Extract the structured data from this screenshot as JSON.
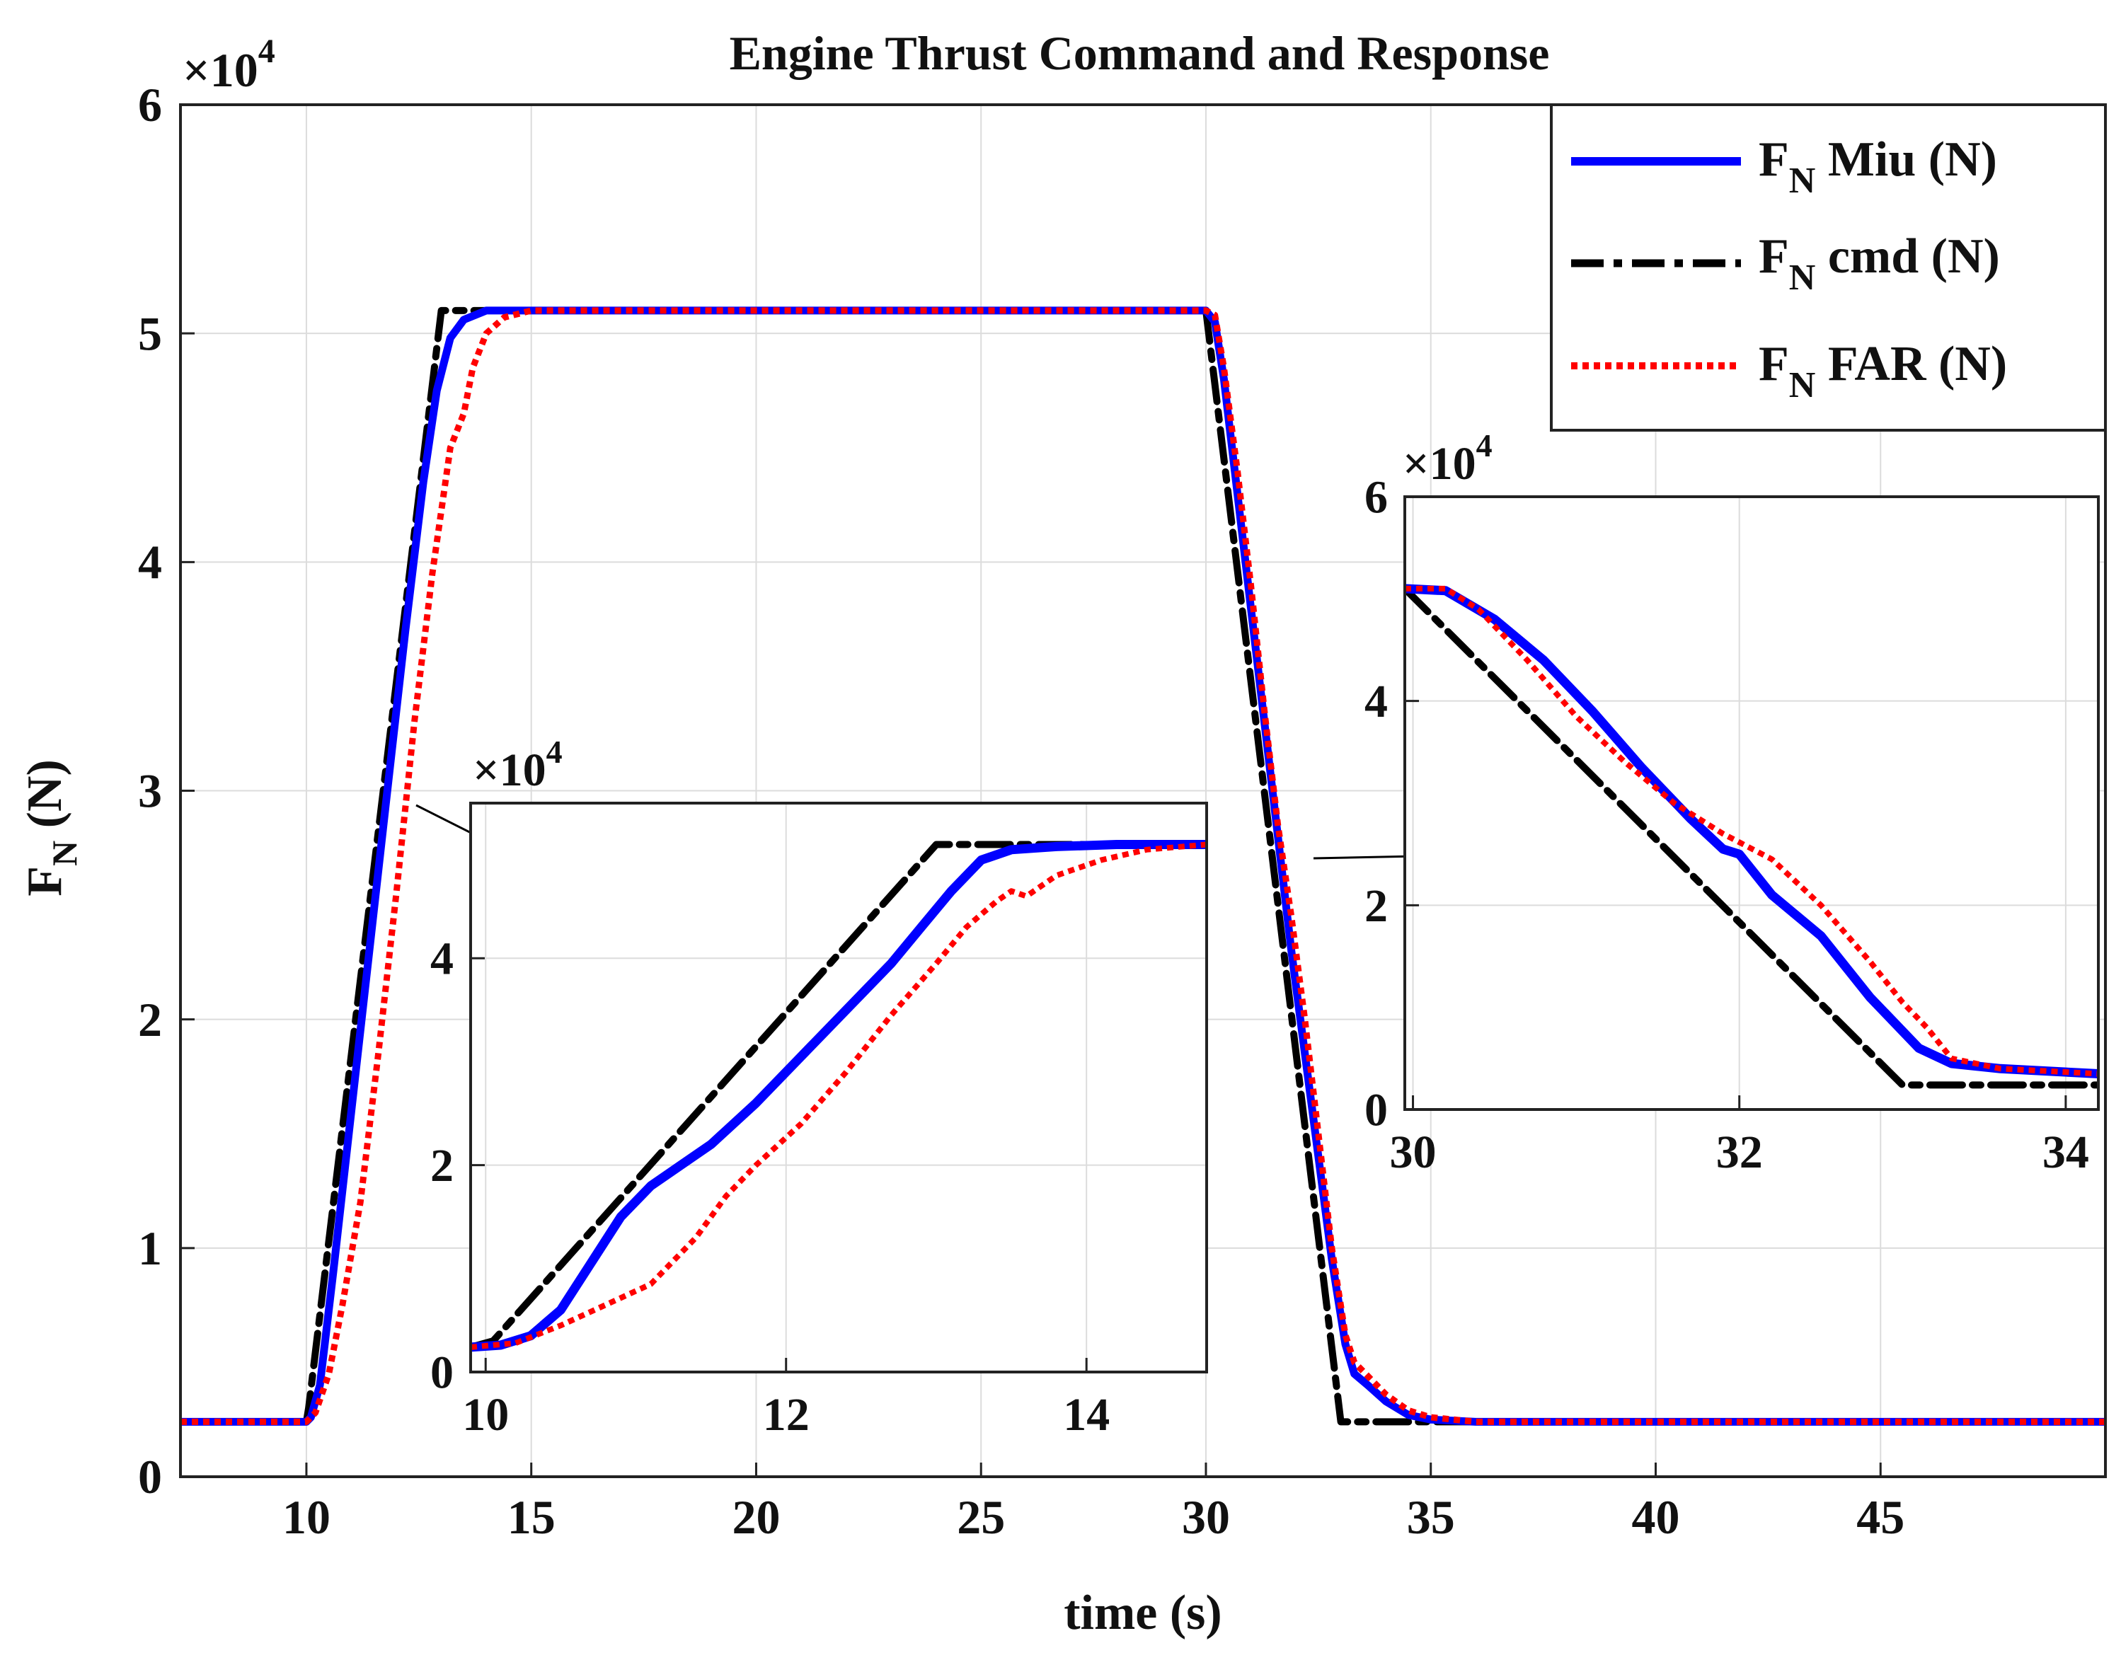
{
  "chart_data": [
    {
      "id": "main",
      "type": "line",
      "title": "Engine Thrust Command and Response",
      "xlabel": "time (s)",
      "ylabel_main": "F",
      "ylabel_sub": "N",
      "ylabel_unit": " (N)",
      "exponent_base": "×10",
      "exponent_power": "4",
      "xlim": [
        7.2,
        50
      ],
      "ylim": [
        0,
        6
      ],
      "grid": true,
      "legend_position": "top-right",
      "xticks": [
        {
          "value": 10,
          "label": "10"
        },
        {
          "value": 15,
          "label": "15"
        },
        {
          "value": 20,
          "label": "20"
        },
        {
          "value": 25,
          "label": "25"
        },
        {
          "value": 30,
          "label": "30"
        },
        {
          "value": 35,
          "label": "35"
        },
        {
          "value": 40,
          "label": "40"
        },
        {
          "value": 45,
          "label": "45"
        }
      ],
      "yticks": [
        {
          "value": 0,
          "label": "0"
        },
        {
          "value": 1,
          "label": "1"
        },
        {
          "value": 2,
          "label": "2"
        },
        {
          "value": 3,
          "label": "3"
        },
        {
          "value": 4,
          "label": "4"
        },
        {
          "value": 5,
          "label": "5"
        },
        {
          "value": 6,
          "label": "6"
        }
      ],
      "series": [
        {
          "key": "miu",
          "name_main": "F",
          "name_sub": "N",
          "name_rest": " Miu (N)",
          "color": "#0000ff",
          "style": "solid",
          "x": [
            7.2,
            10.0,
            10.1,
            10.3,
            10.6,
            11.0,
            11.4,
            11.8,
            12.2,
            12.6,
            12.9,
            13.2,
            13.5,
            14.0,
            14.5,
            30.0,
            30.2,
            30.4,
            30.7,
            31.0,
            31.3,
            31.6,
            31.9,
            32.2,
            32.5,
            32.8,
            33.1,
            33.3,
            33.6,
            34.0,
            34.5,
            35.0,
            36.0,
            50.0
          ],
          "y": [
            0.24,
            0.24,
            0.26,
            0.4,
            0.9,
            1.6,
            2.3,
            3.0,
            3.7,
            4.35,
            4.75,
            4.98,
            5.06,
            5.1,
            5.1,
            5.1,
            5.05,
            4.8,
            4.3,
            3.8,
            3.3,
            2.8,
            2.3,
            1.85,
            1.4,
            0.95,
            0.58,
            0.45,
            0.4,
            0.33,
            0.27,
            0.25,
            0.24,
            0.24
          ]
        },
        {
          "key": "cmd",
          "name_main": "F",
          "name_sub": "N",
          "name_rest": " cmd (N)",
          "color": "#000000",
          "style": "dashdot",
          "x": [
            7.2,
            10.0,
            10.05,
            13.0,
            30.0,
            33.0,
            50.0
          ],
          "y": [
            0.24,
            0.24,
            0.3,
            5.1,
            5.1,
            0.24,
            0.24
          ]
        },
        {
          "key": "far",
          "name_main": "F",
          "name_sub": "N",
          "name_rest": " FAR (N)",
          "color": "#ff0000",
          "style": "dotted",
          "x": [
            7.2,
            10.0,
            10.2,
            10.5,
            10.8,
            11.2,
            11.6,
            12.0,
            12.4,
            12.8,
            13.2,
            13.5,
            13.7,
            14.0,
            14.4,
            15.0,
            30.0,
            30.2,
            30.4,
            30.7,
            31.0,
            31.3,
            31.6,
            31.9,
            32.2,
            32.5,
            32.8,
            33.1,
            33.3,
            33.6,
            34.0,
            34.5,
            35.0,
            36.0,
            50.0
          ],
          "y": [
            0.24,
            0.24,
            0.28,
            0.45,
            0.75,
            1.2,
            1.85,
            2.55,
            3.3,
            3.95,
            4.5,
            4.65,
            4.85,
            5.0,
            5.07,
            5.1,
            5.1,
            5.08,
            4.85,
            4.4,
            3.9,
            3.35,
            2.85,
            2.45,
            2.0,
            1.5,
            1.0,
            0.62,
            0.5,
            0.44,
            0.36,
            0.29,
            0.26,
            0.24,
            0.24
          ]
        }
      ]
    },
    {
      "id": "inset_rise",
      "type": "line",
      "exponent_base": "×10",
      "exponent_power": "4",
      "xlim": [
        9.9,
        14.8
      ],
      "ylim": [
        0,
        5.5
      ],
      "grid": true,
      "xticks": [
        {
          "value": 10,
          "label": "10"
        },
        {
          "value": 12,
          "label": "12"
        },
        {
          "value": 14,
          "label": "14"
        }
      ],
      "yticks": [
        {
          "value": 0,
          "label": "0"
        },
        {
          "value": 2,
          "label": "2"
        },
        {
          "value": 4,
          "label": "4"
        }
      ],
      "series": [
        {
          "key": "miu",
          "color": "#0000ff",
          "style": "solid",
          "x": [
            9.9,
            10.1,
            10.3,
            10.5,
            10.7,
            10.9,
            11.1,
            11.3,
            11.5,
            11.8,
            12.1,
            12.4,
            12.7,
            12.9,
            13.1,
            13.3,
            13.5,
            13.8,
            14.2,
            14.8
          ],
          "y": [
            0.24,
            0.26,
            0.35,
            0.6,
            1.05,
            1.5,
            1.8,
            2.0,
            2.2,
            2.6,
            3.05,
            3.5,
            3.95,
            4.3,
            4.65,
            4.95,
            5.05,
            5.08,
            5.1,
            5.1
          ]
        },
        {
          "key": "cmd",
          "color": "#000000",
          "style": "dashdot",
          "x": [
            9.9,
            10.05,
            13.0,
            14.8
          ],
          "y": [
            0.24,
            0.3,
            5.1,
            5.1
          ]
        },
        {
          "key": "far",
          "color": "#ff0000",
          "style": "dotted",
          "x": [
            9.9,
            10.2,
            10.5,
            10.8,
            11.1,
            11.4,
            11.6,
            11.8,
            12.1,
            12.4,
            12.7,
            13.0,
            13.2,
            13.4,
            13.5,
            13.6,
            13.8,
            14.1,
            14.4,
            14.8
          ],
          "y": [
            0.24,
            0.28,
            0.45,
            0.65,
            0.85,
            1.3,
            1.7,
            2.0,
            2.4,
            2.9,
            3.45,
            3.95,
            4.3,
            4.55,
            4.65,
            4.6,
            4.8,
            4.95,
            5.05,
            5.1
          ]
        }
      ]
    },
    {
      "id": "inset_fall",
      "type": "line",
      "exponent_base": "×10",
      "exponent_power": "4",
      "xlim": [
        29.95,
        34.2
      ],
      "ylim": [
        0,
        6
      ],
      "grid": true,
      "xticks": [
        {
          "value": 30,
          "label": "30"
        },
        {
          "value": 32,
          "label": "32"
        },
        {
          "value": 34,
          "label": "34"
        }
      ],
      "yticks": [
        {
          "value": 0,
          "label": "0"
        },
        {
          "value": 2,
          "label": "2"
        },
        {
          "value": 4,
          "label": "4"
        },
        {
          "value": 6,
          "label": "6"
        }
      ],
      "series": [
        {
          "key": "miu",
          "color": "#0000ff",
          "style": "solid",
          "x": [
            29.95,
            30.2,
            30.5,
            30.8,
            31.1,
            31.4,
            31.7,
            31.9,
            32.0,
            32.2,
            32.5,
            32.8,
            33.1,
            33.3,
            33.6,
            34.2
          ],
          "y": [
            5.1,
            5.08,
            4.8,
            4.4,
            3.9,
            3.35,
            2.85,
            2.55,
            2.5,
            2.1,
            1.7,
            1.1,
            0.6,
            0.45,
            0.4,
            0.35
          ]
        },
        {
          "key": "cmd",
          "color": "#000000",
          "style": "dashdot",
          "x": [
            29.95,
            33.0,
            34.2
          ],
          "y": [
            5.1,
            0.24,
            0.24
          ]
        },
        {
          "key": "far",
          "color": "#ff0000",
          "style": "dotted",
          "x": [
            29.95,
            30.2,
            30.4,
            30.7,
            31.0,
            31.3,
            31.6,
            31.9,
            32.2,
            32.5,
            32.8,
            33.0,
            33.15,
            33.3,
            33.6,
            34.2
          ],
          "y": [
            5.1,
            5.1,
            4.9,
            4.4,
            3.85,
            3.4,
            3.0,
            2.7,
            2.45,
            2.0,
            1.45,
            1.05,
            0.8,
            0.5,
            0.4,
            0.35
          ]
        }
      ]
    }
  ]
}
